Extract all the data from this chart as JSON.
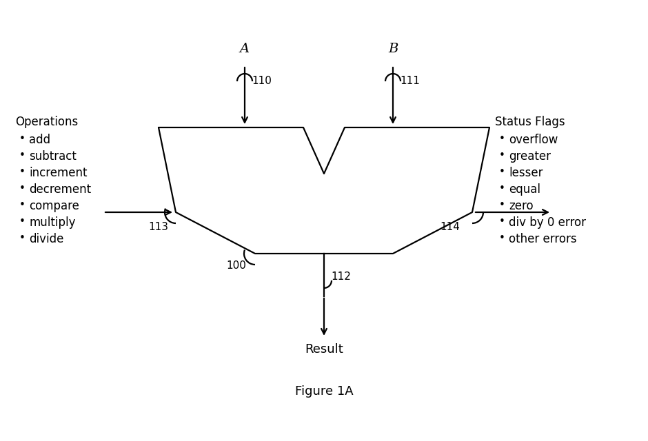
{
  "title": "Figure 1A",
  "bg_color": "#ffffff",
  "line_color": "#000000",
  "label_A": "A",
  "label_B": "B",
  "label_result": "Result",
  "label_figure": "Figure 1A",
  "ref_100": "100",
  "ref_110": "110",
  "ref_111": "111",
  "ref_112": "112",
  "ref_113": "113",
  "ref_114": "114",
  "operations_title": "Operations",
  "operations": [
    "add",
    "subtract",
    "increment",
    "decrement",
    "compare",
    "multiply",
    "divide"
  ],
  "status_title": "Status Flags",
  "status": [
    "overflow",
    "greater",
    "lesser",
    "equal",
    "zero",
    "div by 0 error",
    "other errors"
  ]
}
